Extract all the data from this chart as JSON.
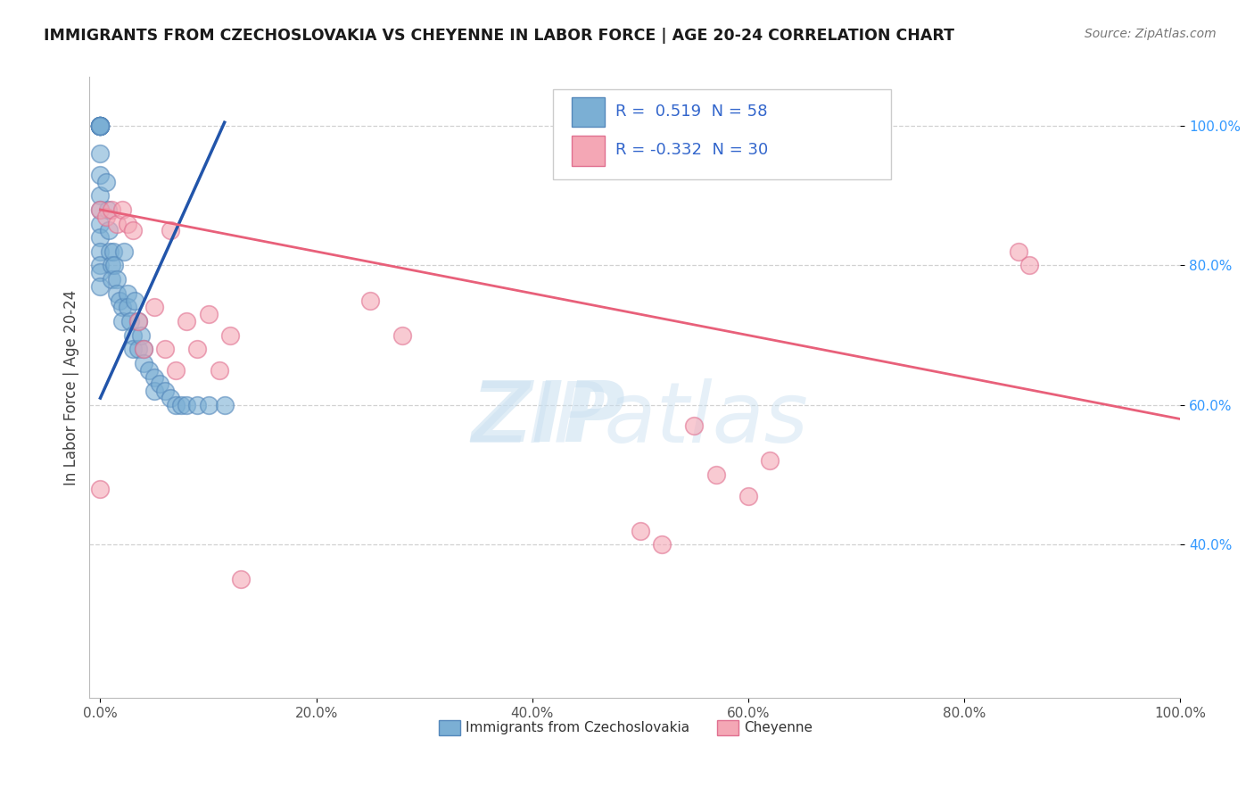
{
  "title": "IMMIGRANTS FROM CZECHOSLOVAKIA VS CHEYENNE IN LABOR FORCE | AGE 20-24 CORRELATION CHART",
  "source_text": "Source: ZipAtlas.com",
  "ylabel": "In Labor Force | Age 20-24",
  "xlim": [
    -0.01,
    1.0
  ],
  "ylim": [
    0.18,
    1.07
  ],
  "xtick_labels": [
    "0.0%",
    "20.0%",
    "40.0%",
    "60.0%",
    "80.0%",
    "100.0%"
  ],
  "xtick_vals": [
    0.0,
    0.2,
    0.4,
    0.6,
    0.8,
    1.0
  ],
  "ytick_labels": [
    "40.0%",
    "60.0%",
    "80.0%",
    "100.0%"
  ],
  "ytick_vals": [
    0.4,
    0.6,
    0.8,
    1.0
  ],
  "blue_color": "#7BAFD4",
  "blue_edge_color": "#5588BB",
  "pink_color": "#F4A7B5",
  "pink_edge_color": "#E07090",
  "blue_line_color": "#2255AA",
  "pink_line_color": "#E8607A",
  "legend_R_blue": " 0.519",
  "legend_N_blue": "58",
  "legend_R_pink": "-0.332",
  "legend_N_pink": "30",
  "blue_scatter_x": [
    0.0,
    0.0,
    0.0,
    0.0,
    0.0,
    0.0,
    0.0,
    0.0,
    0.0,
    0.0,
    0.0,
    0.0,
    0.0,
    0.0,
    0.0,
    0.0,
    0.0,
    0.0,
    0.0,
    0.0,
    0.0,
    0.005,
    0.007,
    0.008,
    0.009,
    0.01,
    0.01,
    0.012,
    0.013,
    0.015,
    0.015,
    0.018,
    0.02,
    0.02,
    0.022,
    0.025,
    0.025,
    0.028,
    0.03,
    0.03,
    0.032,
    0.035,
    0.035,
    0.038,
    0.04,
    0.04,
    0.045,
    0.05,
    0.05,
    0.055,
    0.06,
    0.065,
    0.07,
    0.075,
    0.08,
    0.09,
    0.1,
    0.115
  ],
  "blue_scatter_y": [
    1.0,
    1.0,
    1.0,
    1.0,
    1.0,
    1.0,
    1.0,
    1.0,
    1.0,
    1.0,
    1.0,
    0.96,
    0.93,
    0.9,
    0.88,
    0.86,
    0.84,
    0.82,
    0.8,
    0.79,
    0.77,
    0.92,
    0.88,
    0.85,
    0.82,
    0.8,
    0.78,
    0.82,
    0.8,
    0.78,
    0.76,
    0.75,
    0.74,
    0.72,
    0.82,
    0.76,
    0.74,
    0.72,
    0.7,
    0.68,
    0.75,
    0.72,
    0.68,
    0.7,
    0.68,
    0.66,
    0.65,
    0.64,
    0.62,
    0.63,
    0.62,
    0.61,
    0.6,
    0.6,
    0.6,
    0.6,
    0.6,
    0.6
  ],
  "pink_scatter_x": [
    0.0,
    0.0,
    0.005,
    0.01,
    0.015,
    0.02,
    0.025,
    0.03,
    0.035,
    0.04,
    0.05,
    0.06,
    0.065,
    0.07,
    0.08,
    0.09,
    0.1,
    0.11,
    0.12,
    0.13,
    0.25,
    0.28,
    0.55,
    0.57,
    0.6,
    0.62,
    0.85,
    0.86,
    0.5,
    0.52
  ],
  "pink_scatter_y": [
    0.48,
    0.88,
    0.87,
    0.88,
    0.86,
    0.88,
    0.86,
    0.85,
    0.72,
    0.68,
    0.74,
    0.68,
    0.85,
    0.65,
    0.72,
    0.68,
    0.73,
    0.65,
    0.7,
    0.35,
    0.75,
    0.7,
    0.57,
    0.5,
    0.47,
    0.52,
    0.82,
    0.8,
    0.42,
    0.4
  ],
  "blue_line_x": [
    0.0,
    0.115
  ],
  "blue_line_y": [
    0.61,
    1.005
  ],
  "pink_line_x": [
    0.0,
    1.0
  ],
  "pink_line_y": [
    0.88,
    0.58
  ]
}
